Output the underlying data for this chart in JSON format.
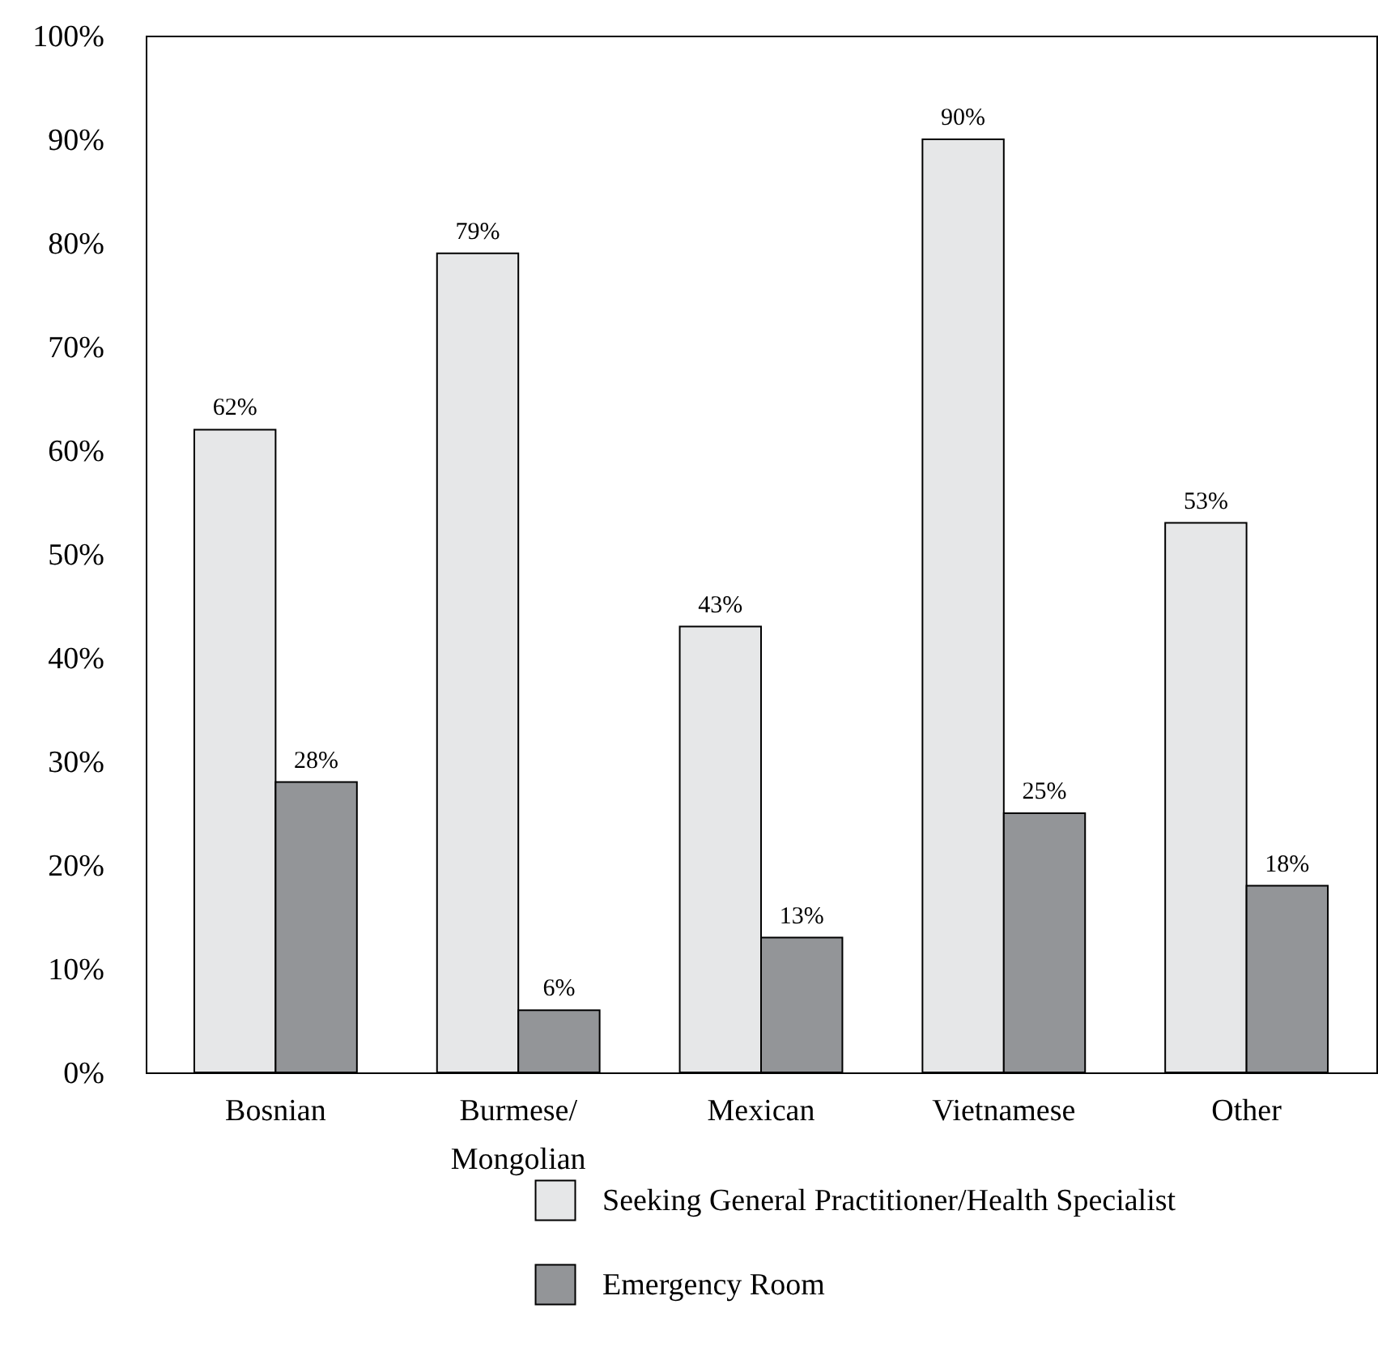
{
  "chart_data": {
    "type": "bar",
    "categories": [
      "Bosnian",
      "Burmese/Mongolian",
      "Mexican",
      "Vietnamese",
      "Other"
    ],
    "series": [
      {
        "name": "Seeking General Practitioner/Health Specialist",
        "color": "#e6e7e8",
        "values": [
          62,
          79,
          43,
          90,
          53
        ],
        "value_labels": [
          "62%",
          "79%",
          "43%",
          "90%",
          "53%"
        ]
      },
      {
        "name": "Emergency Room",
        "color": "#939598",
        "values": [
          28,
          6,
          13,
          25,
          18
        ],
        "value_labels": [
          "28%",
          "6%",
          "13%",
          "25%",
          "18%"
        ]
      }
    ],
    "ylim": [
      0,
      100
    ],
    "yticks": [
      {
        "value": 0,
        "label": "0%"
      },
      {
        "value": 10,
        "label": "10%"
      },
      {
        "value": 20,
        "label": "20%"
      },
      {
        "value": 30,
        "label": "30%"
      },
      {
        "value": 40,
        "label": "40%"
      },
      {
        "value": 50,
        "label": "50%"
      },
      {
        "value": 60,
        "label": "60%"
      },
      {
        "value": 70,
        "label": "70%"
      },
      {
        "value": 80,
        "label": "80%"
      },
      {
        "value": 90,
        "label": "90%"
      },
      {
        "value": 100,
        "label": "100%"
      }
    ],
    "grid": false,
    "legend": "bottom"
  }
}
